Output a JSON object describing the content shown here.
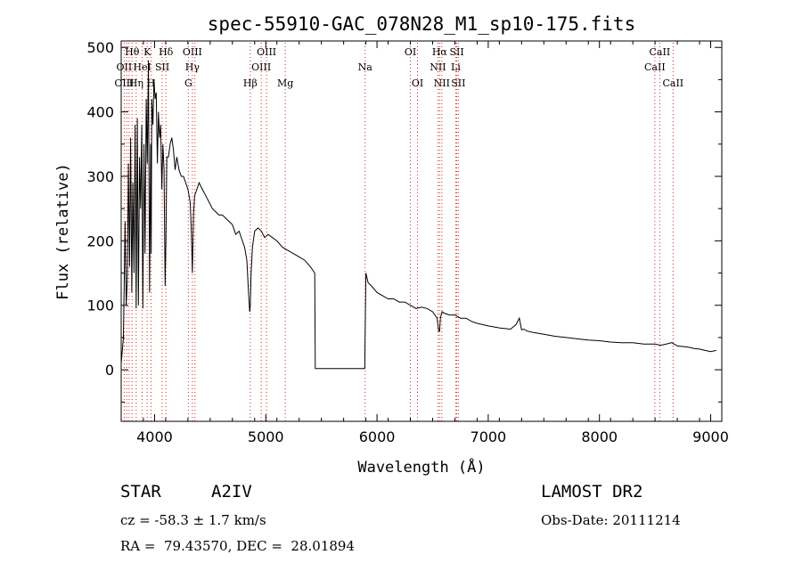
{
  "chart_data": {
    "type": "line",
    "title": "spec-55910-GAC_078N28_M1_sp10-175.fits",
    "xlabel": "Wavelength (Å)",
    "ylabel": "Flux (relative)",
    "xlim": [
      3700,
      9100
    ],
    "ylim": [
      -80,
      510
    ],
    "x_ticks": [
      "4000",
      "5000",
      "6000",
      "7000",
      "8000",
      "9000"
    ],
    "y_ticks": [
      "0",
      "100",
      "200",
      "300",
      "400",
      "500"
    ],
    "grid": false,
    "series": [
      {
        "x": [
          3700,
          3720,
          3735,
          3745,
          3755,
          3765,
          3775,
          3785,
          3795,
          3805,
          3815,
          3825,
          3835,
          3845,
          3855,
          3865,
          3875,
          3885,
          3890,
          3895,
          3905,
          3915,
          3925,
          3935,
          3945,
          3955,
          3965,
          3970,
          3975,
          3985,
          3995,
          4005,
          4015,
          4025,
          4035,
          4045,
          4055,
          4065,
          4075,
          4085,
          4095,
          4102,
          4110,
          4125,
          4140,
          4155,
          4170,
          4185,
          4200,
          4220,
          4240,
          4260,
          4280,
          4300,
          4320,
          4330,
          4340,
          4350,
          4360,
          4380,
          4400,
          4430,
          4460,
          4490,
          4520,
          4550,
          4580,
          4610,
          4640,
          4670,
          4700,
          4730,
          4760,
          4790,
          4810,
          4830,
          4845,
          4855,
          4861,
          4868,
          4880,
          4900,
          4930,
          4960,
          4990,
          5020,
          5060,
          5100,
          5150,
          5200,
          5250,
          5300,
          5350,
          5400,
          5440,
          5445,
          5450,
          5890,
          5895,
          5900,
          5920,
          5950,
          6000,
          6050,
          6100,
          6150,
          6200,
          6250,
          6300,
          6350,
          6400,
          6450,
          6500,
          6540,
          6555,
          6563,
          6570,
          6585,
          6600,
          6650,
          6700,
          6750,
          6800,
          6850,
          6900,
          6950,
          7000,
          7100,
          7200,
          7250,
          7280,
          7300,
          7320,
          7350,
          7400,
          7500,
          7600,
          7700,
          7800,
          7900,
          8000,
          8100,
          8200,
          8300,
          8400,
          8500,
          8550,
          8600,
          8650,
          8700,
          8750,
          8800,
          8850,
          8900,
          8950,
          9000,
          9050
        ],
        "y": [
          10,
          50,
          230,
          100,
          140,
          320,
          160,
          360,
          120,
          290,
          150,
          380,
          95,
          390,
          100,
          330,
          250,
          380,
          240,
          95,
          350,
          180,
          420,
          320,
          480,
          120,
          350,
          180,
          420,
          380,
          450,
          420,
          430,
          320,
          400,
          360,
          380,
          280,
          350,
          310,
          130,
          200,
          330,
          330,
          350,
          360,
          340,
          310,
          330,
          310,
          300,
          300,
          290,
          280,
          260,
          220,
          150,
          240,
          270,
          280,
          290,
          280,
          270,
          260,
          250,
          245,
          240,
          240,
          235,
          230,
          225,
          210,
          215,
          200,
          190,
          170,
          120,
          90,
          100,
          150,
          190,
          215,
          220,
          215,
          205,
          210,
          205,
          200,
          190,
          185,
          180,
          175,
          170,
          160,
          150,
          2,
          2,
          2,
          80,
          150,
          135,
          130,
          120,
          115,
          110,
          110,
          105,
          105,
          100,
          95,
          97,
          95,
          90,
          80,
          60,
          60,
          80,
          90,
          88,
          85,
          85,
          80,
          80,
          75,
          72,
          70,
          68,
          65,
          63,
          70,
          80,
          62,
          63,
          60,
          58,
          55,
          52,
          50,
          48,
          46,
          45,
          43,
          42,
          42,
          40,
          40,
          38,
          40,
          42,
          37,
          36,
          35,
          33,
          32,
          30,
          28,
          30
        ]
      }
    ],
    "line_labels": [
      {
        "text": "Hθ",
        "x": 3798,
        "row": 1
      },
      {
        "text": "K",
        "x": 3934,
        "row": 1
      },
      {
        "text": "Hδ",
        "x": 4102,
        "row": 1
      },
      {
        "text": "OIII",
        "x": 4340,
        "row": 1
      },
      {
        "text": "OIII",
        "x": 5007,
        "row": 1
      },
      {
        "text": "OI",
        "x": 6300,
        "row": 1
      },
      {
        "text": "Hα",
        "x": 6563,
        "row": 1
      },
      {
        "text": "SII",
        "x": 6717,
        "row": 1
      },
      {
        "text": "CaII",
        "x": 8542,
        "row": 1
      },
      {
        "text": "OII",
        "x": 3727,
        "row": 2
      },
      {
        "text": "HeI",
        "x": 3889,
        "row": 2
      },
      {
        "text": "SII",
        "x": 4069,
        "row": 2
      },
      {
        "text": "Hγ",
        "x": 4340,
        "row": 2
      },
      {
        "text": "OIII",
        "x": 4959,
        "row": 2
      },
      {
        "text": "Na",
        "x": 5893,
        "row": 2
      },
      {
        "text": "NII",
        "x": 6548,
        "row": 2
      },
      {
        "text": "Li",
        "x": 6708,
        "row": 2
      },
      {
        "text": "CaII",
        "x": 8498,
        "row": 2
      },
      {
        "text": "OIII",
        "x": 3727,
        "row": 3
      },
      {
        "text": "Hη",
        "x": 3835,
        "row": 3
      },
      {
        "text": "H",
        "x": 3968,
        "row": 3
      },
      {
        "text": "G",
        "x": 4304,
        "row": 3
      },
      {
        "text": "Hβ",
        "x": 4861,
        "row": 3
      },
      {
        "text": "Mg",
        "x": 5175,
        "row": 3
      },
      {
        "text": "OI",
        "x": 6364,
        "row": 3
      },
      {
        "text": "NII",
        "x": 6583,
        "row": 3
      },
      {
        "text": "SII",
        "x": 6731,
        "row": 3
      },
      {
        "text": "CaII",
        "x": 8662,
        "row": 3
      }
    ],
    "line_markers": [
      3727,
      3750,
      3771,
      3798,
      3835,
      3889,
      3934,
      3968,
      4069,
      4102,
      4304,
      4340,
      4363,
      4861,
      4959,
      5007,
      5175,
      5893,
      6300,
      6364,
      6548,
      6563,
      6583,
      6708,
      6717,
      6731,
      8498,
      8542,
      8662
    ]
  },
  "info": {
    "object_type": "STAR",
    "subclass": "A2IV",
    "cz": "cz = -58.3 ± 1.7 km/s",
    "coords": "RA =  79.43570, DEC =  28.01894",
    "survey": "LAMOST DR2",
    "obs_date": "Obs-Date: 20111214"
  },
  "colors": {
    "marker": "#e0211b",
    "line": "#000000"
  }
}
